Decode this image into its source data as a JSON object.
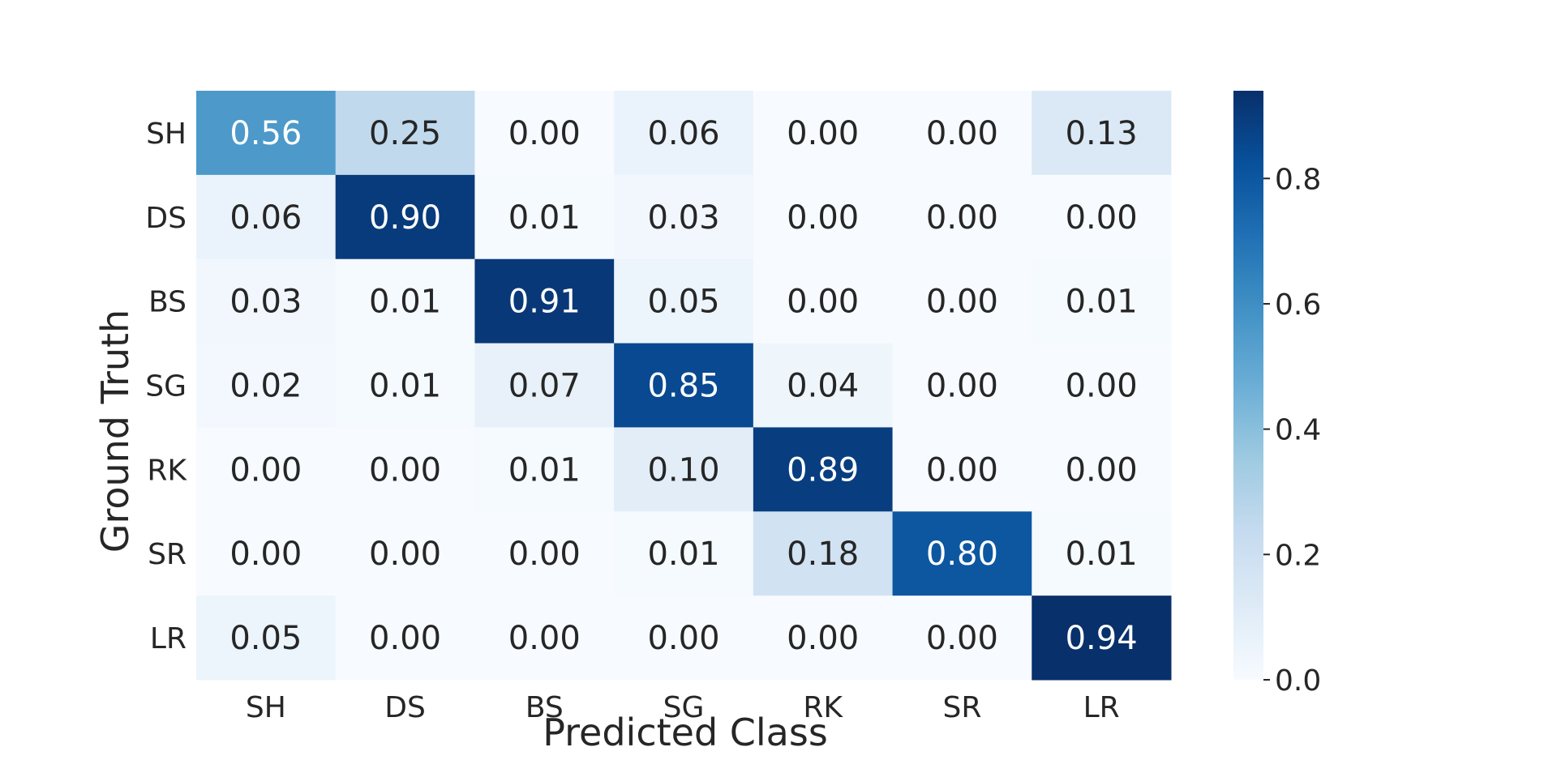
{
  "chart_data": {
    "type": "heatmap",
    "title": "",
    "xlabel": "Predicted Class",
    "ylabel": "Ground Truth",
    "x_categories": [
      "SH",
      "DS",
      "BS",
      "SG",
      "RK",
      "SR",
      "LR"
    ],
    "y_categories": [
      "SH",
      "DS",
      "BS",
      "SG",
      "RK",
      "SR",
      "LR"
    ],
    "values": [
      [
        0.56,
        0.25,
        0.0,
        0.06,
        0.0,
        0.0,
        0.13
      ],
      [
        0.06,
        0.9,
        0.01,
        0.03,
        0.0,
        0.0,
        0.0
      ],
      [
        0.03,
        0.01,
        0.91,
        0.05,
        0.0,
        0.0,
        0.01
      ],
      [
        0.02,
        0.01,
        0.07,
        0.85,
        0.04,
        0.0,
        0.0
      ],
      [
        0.0,
        0.0,
        0.01,
        0.1,
        0.89,
        0.0,
        0.0
      ],
      [
        0.0,
        0.0,
        0.0,
        0.01,
        0.18,
        0.8,
        0.01
      ],
      [
        0.05,
        0.0,
        0.0,
        0.0,
        0.0,
        0.0,
        0.94
      ]
    ],
    "cell_labels": [
      [
        "0.56",
        "0.25",
        "0.00",
        "0.06",
        "0.00",
        "0.00",
        "0.13"
      ],
      [
        "0.06",
        "0.90",
        "0.01",
        "0.03",
        "0.00",
        "0.00",
        "0.00"
      ],
      [
        "0.03",
        "0.01",
        "0.91",
        "0.05",
        "0.00",
        "0.00",
        "0.01"
      ],
      [
        "0.02",
        "0.01",
        "0.07",
        "0.85",
        "0.04",
        "0.00",
        "0.00"
      ],
      [
        "0.00",
        "0.00",
        "0.01",
        "0.10",
        "0.89",
        "0.00",
        "0.00"
      ],
      [
        "0.00",
        "0.00",
        "0.00",
        "0.01",
        "0.18",
        "0.80",
        "0.01"
      ],
      [
        "0.05",
        "0.00",
        "0.00",
        "0.00",
        "0.00",
        "0.00",
        "0.94"
      ]
    ],
    "colorbar": {
      "range": [
        0.0,
        0.94
      ],
      "ticks": [
        0.0,
        0.2,
        0.4,
        0.6,
        0.8
      ],
      "tick_labels": [
        "0.0",
        "0.2",
        "0.4",
        "0.6",
        "0.8"
      ]
    },
    "colormap": [
      "#f7fbff",
      "#deebf7",
      "#c6dbef",
      "#9ecae1",
      "#6baed6",
      "#4292c6",
      "#2171b5",
      "#08519c",
      "#08306b"
    ],
    "grid": false,
    "legend": "colorbar-right"
  }
}
